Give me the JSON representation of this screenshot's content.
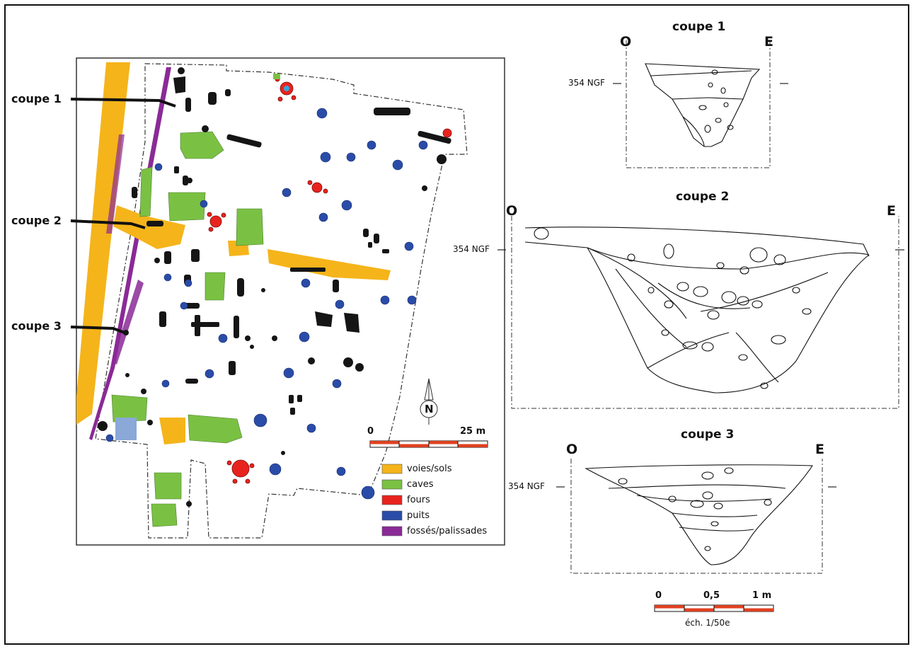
{
  "map": {
    "coupe_labels": [
      "coupe 1",
      "coupe 2",
      "coupe 3"
    ],
    "north_label": "N",
    "scale": {
      "start": "0",
      "end": "25 m"
    },
    "legend": [
      {
        "label": "voies/sols",
        "color": "#f5b41a"
      },
      {
        "label": "caves",
        "color": "#7ac143"
      },
      {
        "label": "fours",
        "color": "#e8231e"
      },
      {
        "label": "puits",
        "color": "#2a4ca8"
      },
      {
        "label": "fossés/palissades",
        "color": "#8a2a96"
      }
    ]
  },
  "sections": [
    {
      "title": "coupe 1",
      "west": "O",
      "east": "E",
      "ngf": "354 NGF"
    },
    {
      "title": "coupe 2",
      "west": "O",
      "east": "E",
      "ngf": "354 NGF"
    },
    {
      "title": "coupe 3",
      "west": "O",
      "east": "E",
      "ngf": "354 NGF"
    }
  ],
  "section_scale": {
    "start": "0",
    "mid": "0,5",
    "end": "1 m",
    "caption": "éch. 1/50e"
  }
}
